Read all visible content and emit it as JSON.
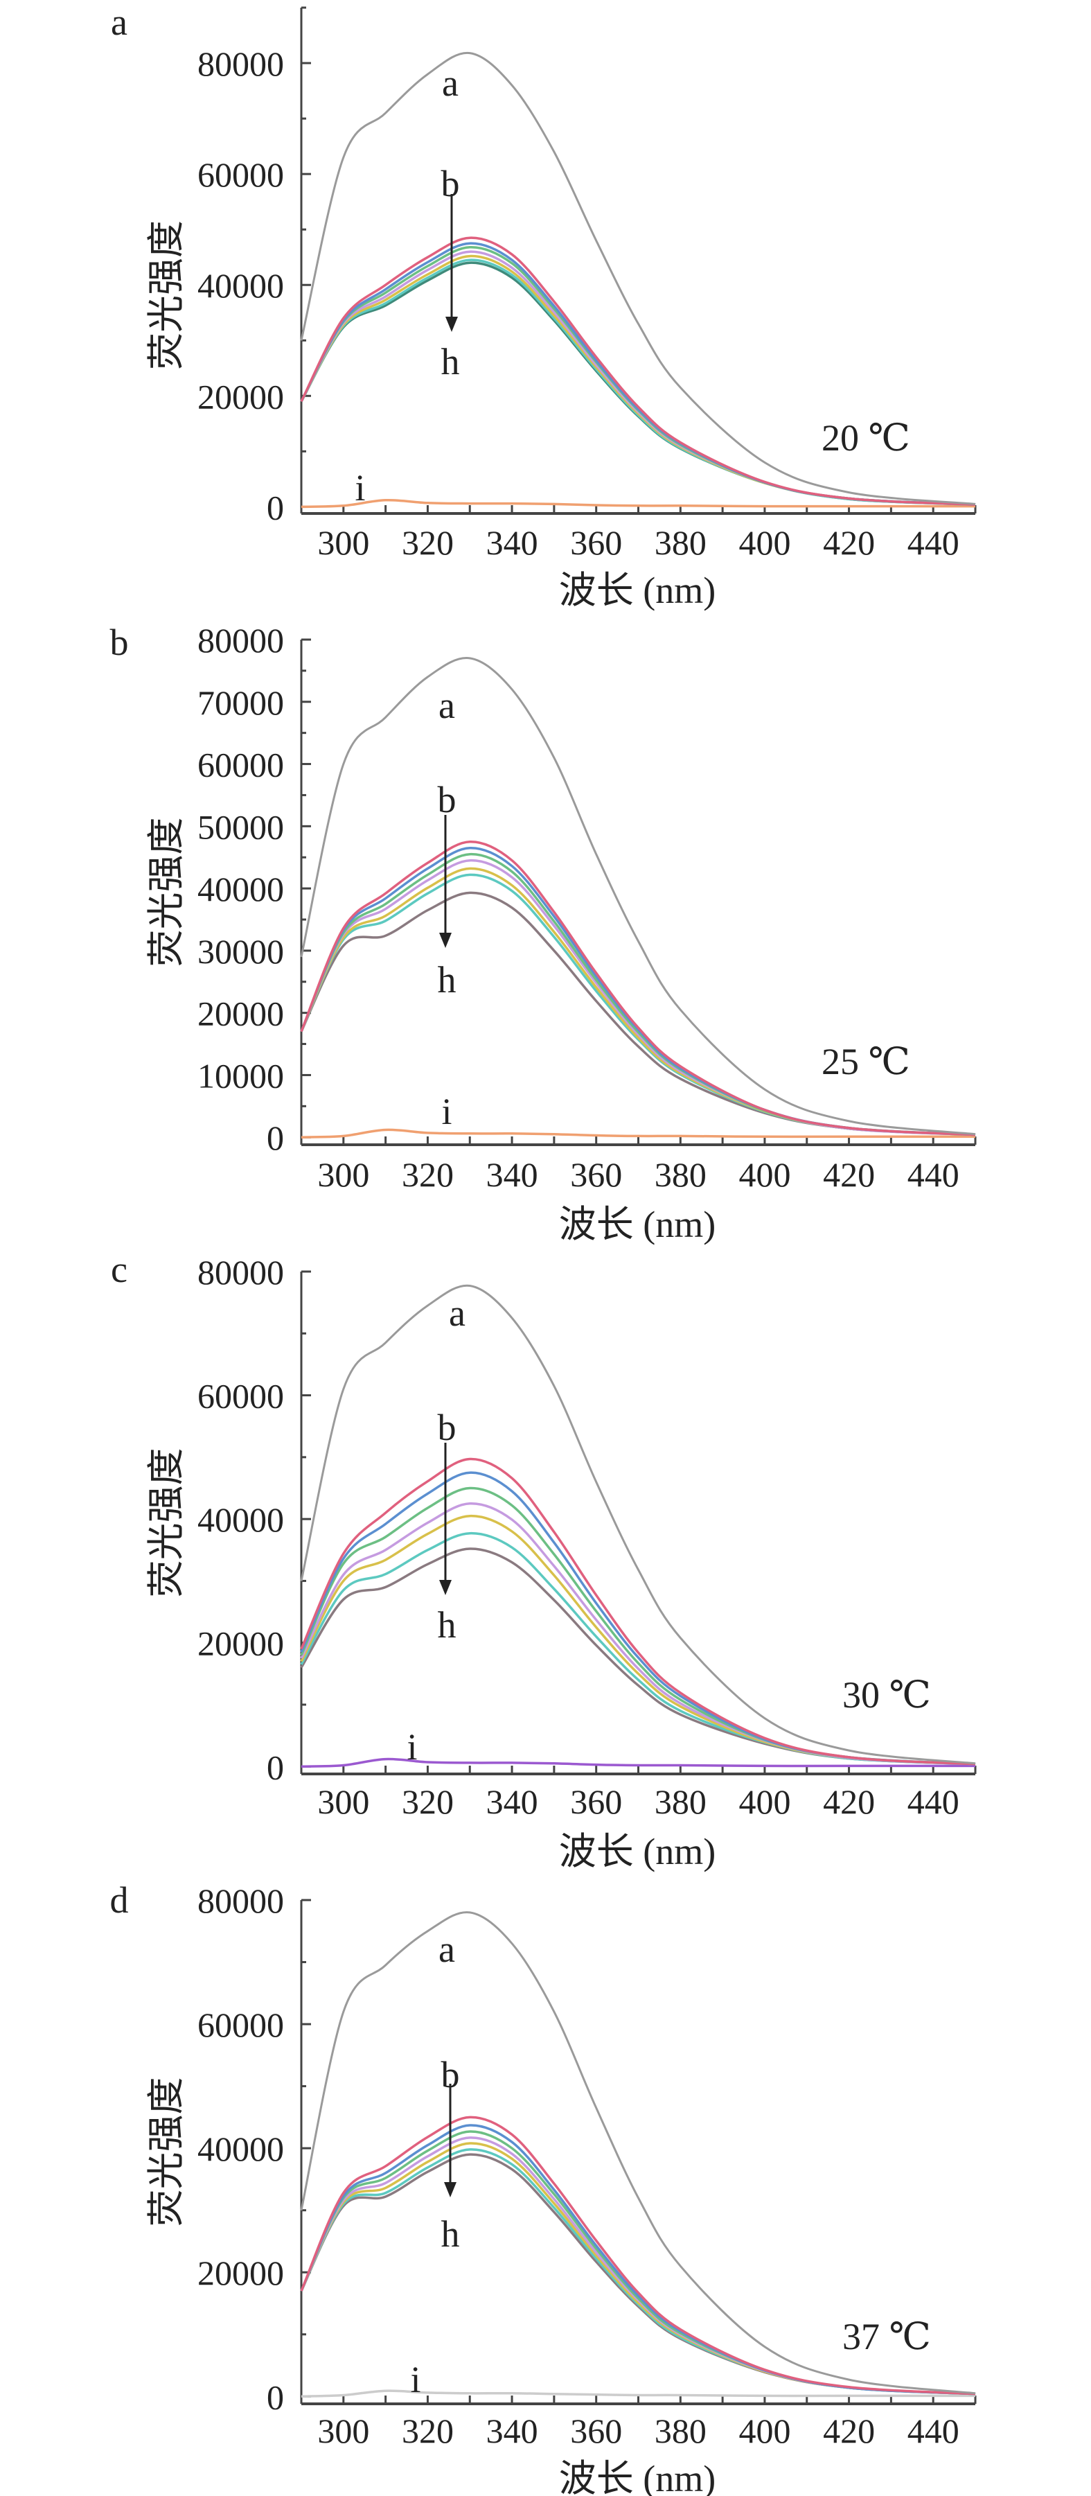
{
  "chart_data": [
    {
      "type": "line",
      "panel_label": "a",
      "temperature_label": "20 ℃",
      "xlabel": "波长 (nm)",
      "ylabel": "荧光强度",
      "xlim": [
        290,
        450
      ],
      "ylim": [
        0,
        90000
      ],
      "xticks": [
        300,
        320,
        340,
        360,
        380,
        400,
        420,
        440
      ],
      "yticks": [
        0,
        20000,
        40000,
        60000,
        80000
      ],
      "annotations": {
        "curve_a": "a",
        "curve_b": "b",
        "curve_h": "h",
        "curve_i": "i"
      },
      "x": [
        290,
        300,
        310,
        320,
        330,
        340,
        350,
        360,
        370,
        380,
        400,
        420,
        450
      ],
      "series": [
        {
          "name": "a",
          "color": "#9a9a9a",
          "values": [
            30000,
            63000,
            71000,
            78000,
            81800,
            76000,
            64000,
            48000,
            33000,
            21500,
            8000,
            2600,
            500
          ]
        },
        {
          "name": "b",
          "color": "#e0607e",
          "values": [
            19000,
            34000,
            40000,
            45000,
            48500,
            45500,
            37000,
            27000,
            18000,
            11600,
            4500,
            1500,
            400
          ]
        },
        {
          "name": "c",
          "color": "#5b8fd0",
          "values": [
            19000,
            33600,
            39200,
            44100,
            47500,
            44500,
            36200,
            26400,
            17600,
            11400,
            4400,
            1500,
            400
          ]
        },
        {
          "name": "d",
          "color": "#6cbf84",
          "values": [
            19000,
            33400,
            38600,
            43400,
            46800,
            43900,
            35700,
            26100,
            17400,
            11200,
            4400,
            1500,
            400
          ]
        },
        {
          "name": "e",
          "color": "#c59be0",
          "values": [
            19000,
            33100,
            37900,
            42700,
            46000,
            43100,
            35100,
            25600,
            17100,
            11000,
            4400,
            1500,
            400
          ]
        },
        {
          "name": "f",
          "color": "#d8c04a",
          "values": [
            19000,
            32800,
            37300,
            41900,
            45200,
            42400,
            34500,
            25200,
            16800,
            10800,
            4300,
            1500,
            400
          ]
        },
        {
          "name": "g",
          "color": "#5cc9c0",
          "values": [
            19000,
            32600,
            36700,
            41300,
            44500,
            41800,
            34000,
            24800,
            16500,
            10600,
            4300,
            1400,
            400
          ]
        },
        {
          "name": "h",
          "color": "#3f8a7a",
          "values": [
            19000,
            32400,
            36300,
            40800,
            44000,
            41300,
            33600,
            24500,
            16300,
            10500,
            4300,
            1400,
            400
          ]
        },
        {
          "name": "i",
          "color": "#f0a070",
          "values": [
            0,
            200,
            1200,
            700,
            600,
            600,
            500,
            300,
            200,
            200,
            100,
            100,
            100
          ]
        }
      ]
    },
    {
      "type": "line",
      "panel_label": "b",
      "temperature_label": "25 ℃",
      "xlabel": "波长 (nm)",
      "ylabel": "荧光强度",
      "xlim": [
        290,
        450
      ],
      "ylim": [
        0,
        80000
      ],
      "xticks": [
        300,
        320,
        340,
        360,
        380,
        400,
        420,
        440
      ],
      "yticks": [
        0,
        10000,
        20000,
        30000,
        40000,
        50000,
        60000,
        70000,
        80000
      ],
      "annotations": {
        "curve_a": "a",
        "curve_b": "b",
        "curve_h": "h",
        "curve_i": "i"
      },
      "x": [
        290,
        300,
        310,
        320,
        330,
        340,
        350,
        360,
        370,
        380,
        400,
        420,
        450
      ],
      "series": [
        {
          "name": "a",
          "color": "#9a9a9a",
          "values": [
            29000,
            60000,
            67500,
            74000,
            77000,
            72000,
            61000,
            45500,
            31500,
            20500,
            7700,
            2600,
            500
          ]
        },
        {
          "name": "b",
          "color": "#e0607e",
          "values": [
            17000,
            33600,
            39200,
            44100,
            47500,
            44500,
            36200,
            26400,
            17600,
            11400,
            4400,
            1500,
            400
          ]
        },
        {
          "name": "c",
          "color": "#5b8fd0",
          "values": [
            17000,
            33300,
            38400,
            43200,
            46500,
            43600,
            35500,
            25900,
            17300,
            11100,
            4400,
            1500,
            400
          ]
        },
        {
          "name": "d",
          "color": "#6cbf84",
          "values": [
            17000,
            32900,
            37500,
            42200,
            45500,
            42700,
            34700,
            25300,
            16900,
            10900,
            4300,
            1500,
            400
          ]
        },
        {
          "name": "e",
          "color": "#c59be0",
          "values": [
            17000,
            32600,
            36700,
            41300,
            44500,
            41800,
            34000,
            24800,
            16500,
            10600,
            4300,
            1400,
            400
          ]
        },
        {
          "name": "f",
          "color": "#d8c04a",
          "values": [
            17000,
            32100,
            35600,
            40100,
            43200,
            40500,
            33000,
            24100,
            16000,
            10300,
            4200,
            1400,
            400
          ]
        },
        {
          "name": "g",
          "color": "#5cc9c0",
          "values": [
            17000,
            31800,
            34800,
            39200,
            42200,
            39600,
            32200,
            23500,
            15700,
            10100,
            4100,
            1400,
            400
          ]
        },
        {
          "name": "h",
          "color": "#8a7a80",
          "values": [
            17000,
            30800,
            32400,
            36500,
            39300,
            36900,
            30000,
            21900,
            14600,
            9400,
            3900,
            1400,
            400
          ]
        },
        {
          "name": "i",
          "color": "#f0a070",
          "values": [
            0,
            200,
            1200,
            700,
            600,
            600,
            500,
            300,
            200,
            200,
            100,
            100,
            100
          ]
        }
      ]
    },
    {
      "type": "line",
      "panel_label": "c",
      "temperature_label": "30 ℃",
      "xlabel": "波长 (nm)",
      "ylabel": "荧光强度",
      "xlim": [
        290,
        450
      ],
      "ylim": [
        0,
        80000
      ],
      "xticks": [
        300,
        320,
        340,
        360,
        380,
        400,
        420,
        440
      ],
      "yticks": [
        0,
        20000,
        40000,
        60000,
        80000
      ],
      "annotations": {
        "curve_a": "a",
        "curve_b": "b",
        "curve_h": "h",
        "curve_i": "i"
      },
      "x": [
        290,
        300,
        310,
        320,
        330,
        340,
        350,
        360,
        370,
        380,
        400,
        420,
        450
      ],
      "series": [
        {
          "name": "a",
          "color": "#9a9a9a",
          "values": [
            30000,
            61000,
            68500,
            74500,
            77700,
            72500,
            61500,
            46000,
            31800,
            20800,
            7800,
            2600,
            500
          ]
        },
        {
          "name": "b",
          "color": "#e0607e",
          "values": [
            19000,
            34400,
            41000,
            46100,
            49700,
            46600,
            37900,
            27700,
            18400,
            11900,
            4600,
            1500,
            400
          ]
        },
        {
          "name": "c",
          "color": "#5b8fd0",
          "values": [
            18500,
            33600,
            39200,
            44100,
            47500,
            44500,
            36200,
            26400,
            17600,
            11400,
            4400,
            1500,
            400
          ]
        },
        {
          "name": "d",
          "color": "#6cbf84",
          "values": [
            18000,
            32800,
            37100,
            41800,
            45000,
            42200,
            34300,
            25100,
            16700,
            10800,
            4300,
            1500,
            400
          ]
        },
        {
          "name": "e",
          "color": "#c59be0",
          "values": [
            17500,
            31000,
            35000,
            39400,
            42500,
            39900,
            32400,
            23700,
            15800,
            10200,
            4200,
            1400,
            400
          ]
        },
        {
          "name": "f",
          "color": "#d8c04a",
          "values": [
            17000,
            30000,
            33400,
            37600,
            40500,
            38000,
            30900,
            22500,
            15000,
            9700,
            4000,
            1400,
            400
          ]
        },
        {
          "name": "g",
          "color": "#5cc9c0",
          "values": [
            16500,
            28500,
            31100,
            35000,
            37700,
            35400,
            28700,
            21000,
            14000,
            9000,
            3900,
            1300,
            400
          ]
        },
        {
          "name": "h",
          "color": "#8a7a80",
          "values": [
            16000,
            27000,
            29000,
            32700,
            35200,
            33000,
            26900,
            19600,
            13100,
            8400,
            3700,
            1300,
            400
          ]
        },
        {
          "name": "i",
          "color": "#9b59d0",
          "values": [
            0,
            200,
            1200,
            700,
            600,
            600,
            500,
            300,
            200,
            200,
            100,
            100,
            100
          ]
        }
      ]
    },
    {
      "type": "line",
      "panel_label": "d",
      "temperature_label": "37 ℃",
      "xlabel": "波长 (nm)",
      "ylabel": "荧光强度",
      "xlim": [
        290,
        450
      ],
      "ylim": [
        0,
        80000
      ],
      "xticks": [
        300,
        320,
        340,
        360,
        380,
        400,
        420,
        440
      ],
      "yticks": [
        0,
        20000,
        40000,
        60000,
        80000
      ],
      "annotations": {
        "curve_a": "a",
        "curve_b": "b",
        "curve_h": "h",
        "curve_i": "i"
      },
      "x": [
        290,
        300,
        310,
        320,
        330,
        340,
        350,
        360,
        370,
        380,
        400,
        420,
        450
      ],
      "series": [
        {
          "name": "a",
          "color": "#9a9a9a",
          "values": [
            30000,
            62000,
            69500,
            75000,
            78000,
            73000,
            62000,
            46500,
            32000,
            21000,
            8000,
            2700,
            500
          ]
        },
        {
          "name": "b",
          "color": "#e0607e",
          "values": [
            17000,
            32800,
            37100,
            41800,
            45000,
            42200,
            34300,
            25100,
            16700,
            10800,
            4300,
            1500,
            400
          ]
        },
        {
          "name": "c",
          "color": "#5b8fd0",
          "values": [
            17000,
            32300,
            36000,
            40500,
            43700,
            41000,
            33300,
            24300,
            16200,
            10500,
            4200,
            1400,
            400
          ]
        },
        {
          "name": "d",
          "color": "#6cbf84",
          "values": [
            17000,
            32000,
            35200,
            39600,
            42700,
            40000,
            32600,
            23800,
            15800,
            10200,
            4200,
            1400,
            400
          ]
        },
        {
          "name": "e",
          "color": "#c59be0",
          "values": [
            17000,
            31600,
            34400,
            38700,
            41700,
            39100,
            31800,
            23200,
            15500,
            10000,
            4100,
            1400,
            400
          ]
        },
        {
          "name": "f",
          "color": "#d8c04a",
          "values": [
            17000,
            31300,
            33600,
            37800,
            40800,
            38300,
            31100,
            22700,
            15100,
            9800,
            4000,
            1400,
            400
          ]
        },
        {
          "name": "g",
          "color": "#5cc9c0",
          "values": [
            17000,
            31000,
            32800,
            36900,
            39800,
            37400,
            30400,
            22200,
            14800,
            9500,
            4000,
            1400,
            400
          ]
        },
        {
          "name": "h",
          "color": "#8a7a80",
          "values": [
            17000,
            30700,
            32200,
            36200,
            39000,
            36600,
            29700,
            21700,
            14500,
            9300,
            3900,
            1400,
            400
          ]
        },
        {
          "name": "i",
          "color": "#cccccc",
          "values": [
            0,
            200,
            900,
            600,
            500,
            500,
            400,
            300,
            200,
            200,
            100,
            100,
            100
          ]
        }
      ]
    }
  ]
}
